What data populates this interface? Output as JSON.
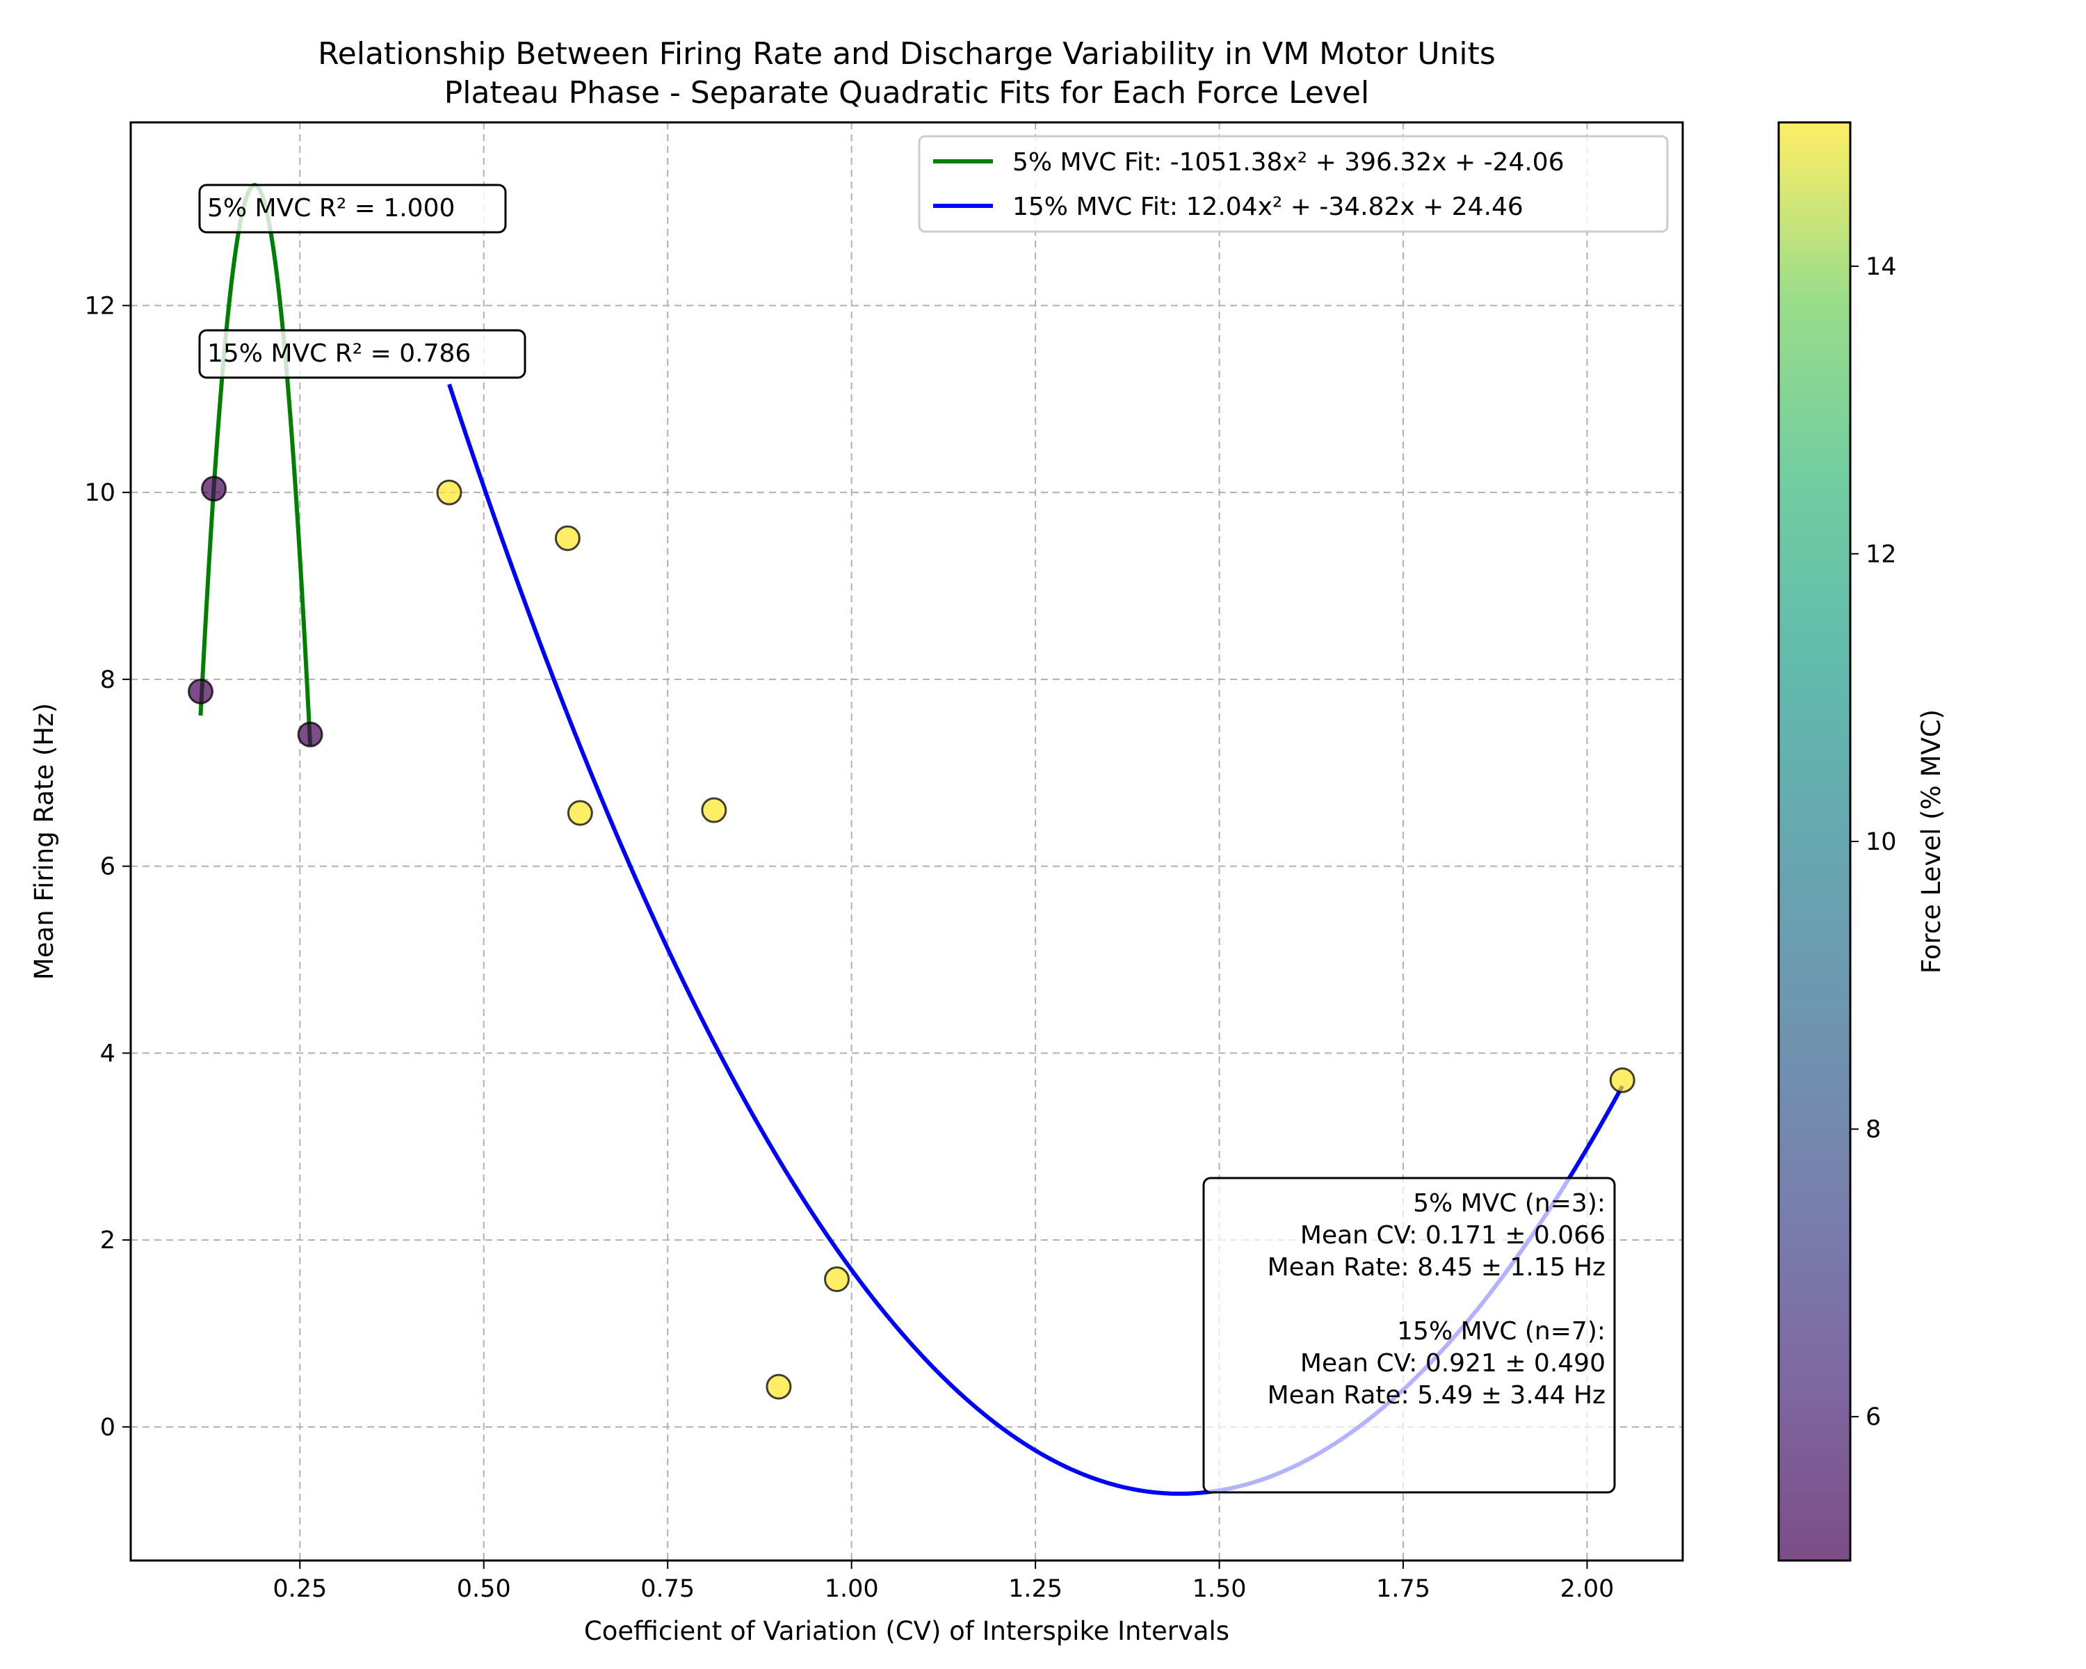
{
  "chart_data": {
    "type": "scatter",
    "title": "Relationship Between Firing Rate and Discharge Variability in VM Motor Units",
    "subtitle": "Plateau Phase - Separate Quadratic Fits for Each Force Level",
    "xlabel": "Coefficient of Variation (CV) of Interspike Intervals",
    "ylabel": "Mean Firing Rate (Hz)",
    "xlim": [
      0.02,
      2.13
    ],
    "ylim": [
      -1.43,
      13.96
    ],
    "xticks": [
      "0.25",
      "0.50",
      "0.75",
      "1.00",
      "1.25",
      "1.50",
      "1.75",
      "2.00"
    ],
    "yticks": [
      "0",
      "2",
      "4",
      "6",
      "8",
      "10",
      "12"
    ],
    "grid": true,
    "legend_position": "top-right",
    "series": [
      {
        "force_level": 5,
        "color": "#440154",
        "points": [
          {
            "x": 0.115,
            "y": 7.87
          },
          {
            "x": 0.133,
            "y": 10.04
          },
          {
            "x": 0.264,
            "y": 7.41
          }
        ]
      },
      {
        "force_level": 15,
        "color": "#fde725",
        "points": [
          {
            "x": 0.453,
            "y": 10.0
          },
          {
            "x": 0.614,
            "y": 9.51
          },
          {
            "x": 0.631,
            "y": 6.57
          },
          {
            "x": 0.813,
            "y": 6.6
          },
          {
            "x": 0.901,
            "y": 0.43
          },
          {
            "x": 0.98,
            "y": 1.58
          },
          {
            "x": 2.048,
            "y": 3.71
          }
        ]
      }
    ],
    "fits": [
      {
        "name": "5% MVC Fit: -1051.38x² + 396.32x + -24.06",
        "a": -1051.38,
        "b": 396.32,
        "c": -24.06,
        "x_range": [
          0.115,
          0.264
        ],
        "color": "#008000"
      },
      {
        "name": "15% MVC Fit: 12.04x² + -34.82x + 24.46",
        "a": 12.04,
        "b": -34.82,
        "c": 24.46,
        "x_range": [
          0.453,
          2.048
        ],
        "color": "#0000ff"
      }
    ],
    "annotations": {
      "r2_5": "5% MVC R² = 1.000",
      "r2_15": "15% MVC R² = 0.786",
      "stats_lines": [
        "5% MVC (n=3):",
        "Mean CV: 0.171 ± 0.066",
        "Mean Rate: 8.45 ± 1.15 Hz",
        "",
        "15% MVC (n=7):",
        "Mean CV: 0.921 ± 0.490",
        "Mean Rate: 5.49 ± 3.44 Hz"
      ]
    },
    "colorbar": {
      "label": "Force Level (% MVC)",
      "range": [
        5,
        15
      ],
      "colormap": "viridis",
      "ticks": [
        "6",
        "8",
        "10",
        "12",
        "14"
      ]
    }
  }
}
